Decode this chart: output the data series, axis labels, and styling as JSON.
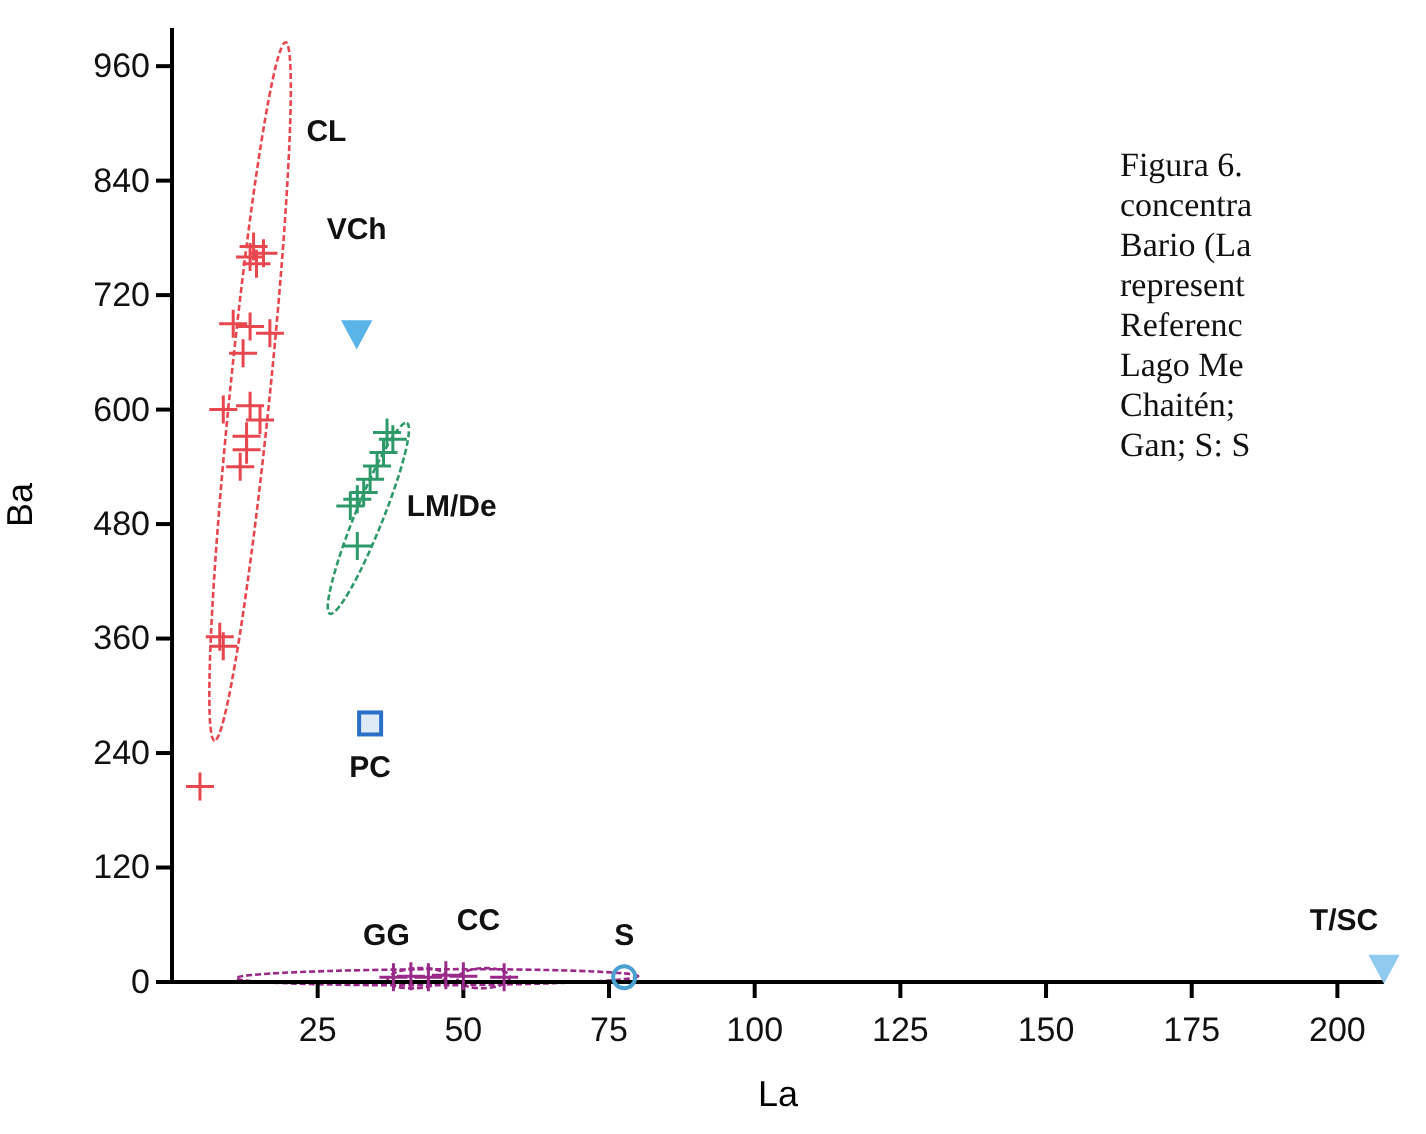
{
  "chart_data": {
    "type": "scatter",
    "xlabel": "La",
    "ylabel": "Ba",
    "xlim": [
      0,
      208
    ],
    "ylim": [
      0,
      1000
    ],
    "xticks": [
      25,
      50,
      75,
      100,
      125,
      150,
      175,
      200
    ],
    "yticks": [
      0,
      120,
      240,
      360,
      480,
      600,
      720,
      840,
      960
    ],
    "grid": false,
    "series": [
      {
        "type": "scatter",
        "marker": "cross",
        "color": "#e8474f",
        "x": [
          14.0,
          13.4,
          14.5,
          15.7,
          10.5,
          13.4,
          16.8,
          12.2,
          8.8,
          13.4,
          15.1,
          12.8,
          12.8,
          11.7,
          8.2,
          8.8,
          4.8
        ],
        "values": [
          771,
          760,
          753,
          764,
          690,
          687,
          680,
          659,
          600,
          604,
          589,
          572,
          558,
          540,
          362,
          352,
          205
        ]
      },
      {
        "type": "scatter",
        "marker": "triangle",
        "color": "#5ab4e8",
        "x": [
          31.7
        ],
        "values": [
          680
        ]
      },
      {
        "type": "scatter",
        "marker": "square",
        "color": "#2a70c8",
        "x": [
          34
        ],
        "values": [
          271
        ]
      },
      {
        "type": "scatter",
        "marker": "cross",
        "color": "#2e9a6a",
        "x": [
          31.8,
          34,
          36.3,
          36.9,
          30.6,
          32.9,
          35.2,
          31.8,
          37.9
        ],
        "values": [
          506,
          527,
          555,
          576,
          499,
          513,
          541,
          457,
          569
        ]
      },
      {
        "type": "scatter",
        "marker": "cross",
        "color": "#9a2a8a",
        "x": [
          38,
          41,
          44,
          47,
          50,
          57
        ],
        "values": [
          5,
          6,
          5,
          7,
          6,
          5
        ]
      },
      {
        "type": "scatter",
        "marker": "circle",
        "color": "#4aa0d0",
        "x": [
          77.6
        ],
        "values": [
          5
        ]
      },
      {
        "type": "scatter",
        "marker": "triangle",
        "color": "#8ecbef",
        "x": [
          208
        ],
        "values": [
          15
        ]
      }
    ],
    "annotations": [
      "CL",
      "VCh",
      "LM/De",
      "PC",
      "GG",
      "CC",
      "S",
      "T/SC",
      "Figura 6.",
      "concentra",
      "Bario (La",
      "represent",
      "Referenc",
      "Lago Me",
      "Chaitén;",
      "Gan; S: S"
    ]
  }
}
